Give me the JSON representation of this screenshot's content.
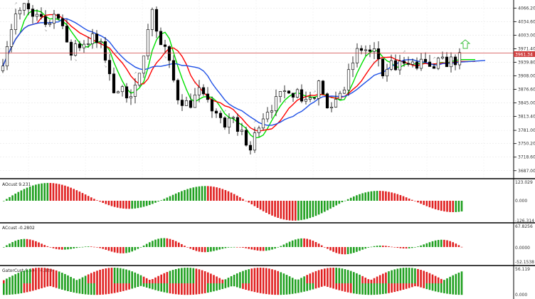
{
  "price_axis": {
    "ticks": [
      "4066.20",
      "4034.60",
      "4003.00",
      "3971.40",
      "3939.80",
      "3908.00",
      "3876.60",
      "3845.00",
      "3813.40",
      "3781.00",
      "3750.20",
      "3718.60",
      "3687.00"
    ]
  },
  "current_price": "3961.34",
  "indicators": [
    {
      "title": "AOcust 9.231",
      "ticks": [
        "123.029",
        "0.000",
        "-126.314"
      ]
    },
    {
      "title": "ACcust -0.2802",
      "ticks": [
        "67.8256",
        "0.0000",
        "-52.1538"
      ]
    },
    {
      "title": "GatorCust 9.604 -6.320",
      "ticks": [
        "56.119",
        "0.000"
      ]
    }
  ],
  "colors": {
    "bull_candle": "#ffffff",
    "bear_candle": "#000000",
    "ma_fast": "#00e000",
    "ma_mid": "#ff0000",
    "ma_slow": "#1e50e6",
    "price_line": "#d04040",
    "hist_up": "#20a020",
    "hist_down": "#e02020",
    "signal_arrow": "#40c040"
  }
}
